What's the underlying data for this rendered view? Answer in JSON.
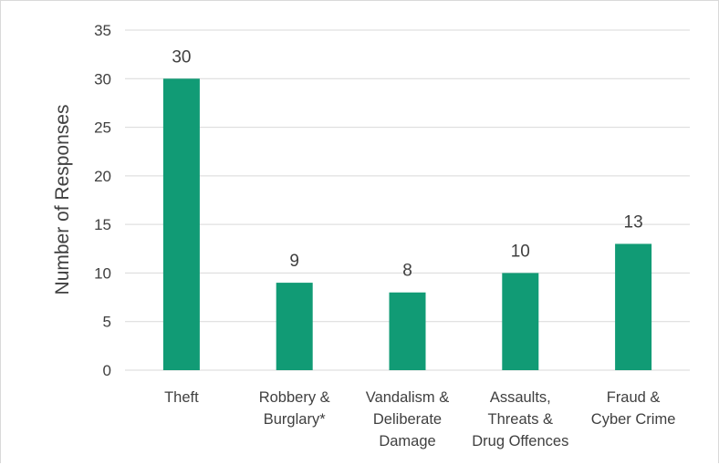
{
  "chart_data": {
    "type": "bar",
    "categories": [
      [
        "Theft"
      ],
      [
        "Robbery &",
        "Burglary*"
      ],
      [
        "Vandalism &",
        "Deliberate",
        "Damage"
      ],
      [
        "Assaults,",
        "Threats &",
        "Drug Offences"
      ],
      [
        "Fraud &",
        "Cyber Crime"
      ]
    ],
    "values": [
      30,
      9,
      8,
      10,
      13
    ],
    "ylabel": "Number of Responses",
    "ylim": [
      0,
      35
    ],
    "yticks": [
      0,
      5,
      10,
      15,
      20,
      25,
      30,
      35
    ],
    "bar_color": "#119b75",
    "gridlines": true,
    "data_labels": true
  }
}
